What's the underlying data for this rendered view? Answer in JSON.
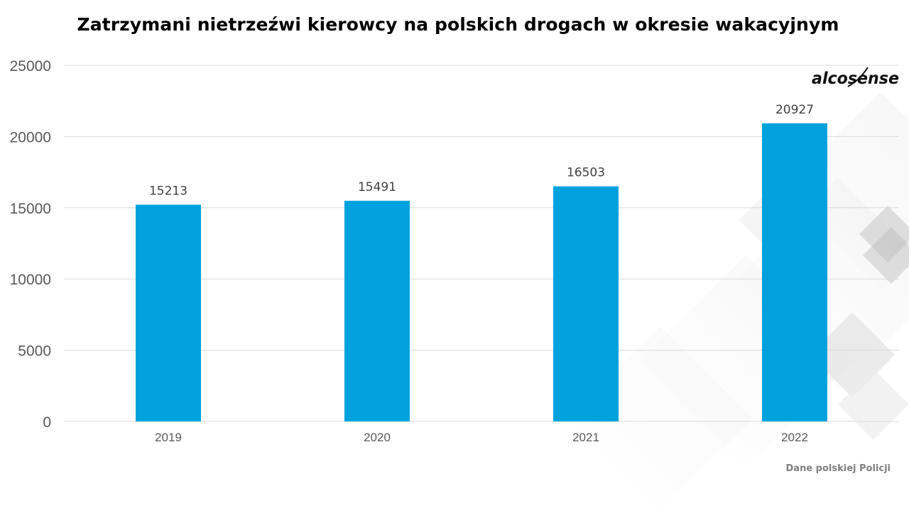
{
  "chart_data": {
    "type": "bar",
    "title": "Zatrzymani nietrzeźwi kierowcy na polskich drogach w okresie wakacyjnym",
    "xlabel": "",
    "ylabel": "",
    "categories": [
      "2019",
      "2020",
      "2021",
      "2022"
    ],
    "values": [
      15213,
      15491,
      16503,
      20927
    ],
    "data_labels": [
      "15213",
      "15491",
      "16503",
      "20927"
    ],
    "ylim": [
      0,
      25000
    ],
    "yticks": [
      0,
      5000,
      10000,
      15000,
      20000,
      25000
    ],
    "ytick_labels": [
      "0",
      "5000",
      "10000",
      "15000",
      "20000",
      "25000"
    ],
    "grid": true,
    "legend": "none",
    "bar_color": "#00a2de"
  },
  "brand": {
    "logo_text": "alcosense"
  },
  "source_note": "Dane polskiej Policji",
  "colors": {
    "grid": "#d9d9d9",
    "axis_text": "#595959",
    "label_text": "#404040",
    "logo": "#111111"
  }
}
